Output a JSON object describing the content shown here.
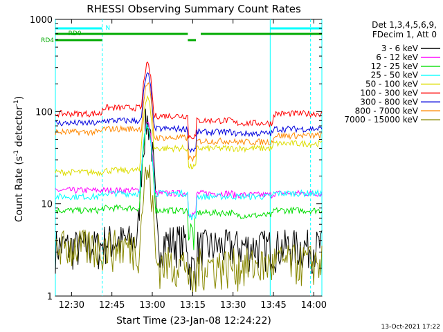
{
  "chart_data": {
    "type": "line",
    "title": "RHESSI Observing Summary Count Rates",
    "xlabel": "Start Time (23-Jan-08 12:24:22)",
    "ylabel_main": "Count Rate (s",
    "ylabel_sup1": "-1",
    "ylabel_mid": " detector",
    "ylabel_sup2": "-1",
    "ylabel_end": ")",
    "xlim_minutes": [
      12.4,
      14.05
    ],
    "ylim": [
      1,
      1000
    ],
    "y_scale": "log",
    "x_ticks": [
      {
        "label": "12:30",
        "value": 12.5
      },
      {
        "label": "12:45",
        "value": 12.75
      },
      {
        "label": "13:00",
        "value": 13.0
      },
      {
        "label": "13:15",
        "value": 13.25
      },
      {
        "label": "13:30",
        "value": 13.5
      },
      {
        "label": "13:45",
        "value": 13.75
      },
      {
        "label": "14:00",
        "value": 14.0
      }
    ],
    "y_ticks": [
      {
        "label": "1",
        "value": 1
      },
      {
        "label": "10",
        "value": 10
      },
      {
        "label": "100",
        "value": 100
      },
      {
        "label": "1000",
        "value": 1000
      }
    ],
    "legend_header": [
      "Det 1,3,4,5,6,9,",
      "FDecim 1, Att 0"
    ],
    "series": [
      {
        "name": "3 - 6 keV",
        "color": "#000000",
        "base_values": [
          3.5,
          4,
          4,
          3.5,
          3.5,
          3.5,
          3.5
        ],
        "peak": 80
      },
      {
        "name": "6 - 12 keV",
        "color": "#ff00ff",
        "base_values": [
          14,
          14,
          13,
          13,
          13,
          12.5,
          13
        ],
        "peak": 75
      },
      {
        "name": "12 - 25 keV",
        "color": "#00dd00",
        "base_values": [
          8.5,
          9,
          8.5,
          8,
          8,
          7.5,
          8.5
        ],
        "peak": 65
      },
      {
        "name": "25 - 50 keV",
        "color": "#00ffff",
        "base_values": [
          12,
          13,
          13,
          12,
          12,
          12,
          13
        ],
        "peak": 70
      },
      {
        "name": "50 - 100 keV",
        "color": "#dddd00",
        "base_values": [
          22,
          23,
          40,
          42,
          40,
          40,
          45
        ],
        "peak": 140
      },
      {
        "name": "100 - 300 keV",
        "color": "#ff0000",
        "base_values": [
          95,
          110,
          90,
          90,
          80,
          75,
          95
        ],
        "peak": 320
      },
      {
        "name": "300 - 800 keV",
        "color": "#0000dd",
        "base_values": [
          75,
          80,
          65,
          65,
          60,
          58,
          65
        ],
        "peak": 250
      },
      {
        "name": "800 - 7000 keV",
        "color": "#ff8800",
        "base_values": [
          60,
          65,
          52,
          52,
          48,
          47,
          55
        ],
        "peak": 200
      },
      {
        "name": "7000 - 15000 keV",
        "color": "#888800",
        "base_values": [
          3.5,
          3.5,
          2.3,
          2.3,
          2.2,
          2.2,
          2.4
        ],
        "peak": 22
      }
    ],
    "flags": [
      {
        "name": "N",
        "color": "#00ffff",
        "label": "N"
      },
      {
        "name": "RD0",
        "color": "#00aa00",
        "label": "RD0"
      },
      {
        "name": "RD4",
        "color": "#00aa00",
        "label": "RD4"
      }
    ],
    "footer_date": "13-Oct-2021 17:22"
  }
}
